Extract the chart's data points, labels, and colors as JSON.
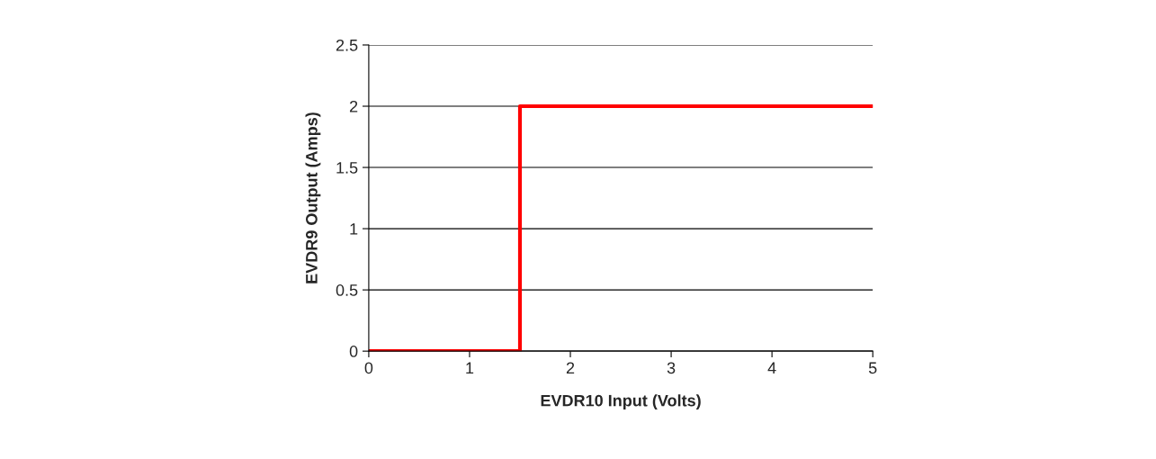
{
  "chart_data": {
    "type": "line",
    "xlabel": "EVDR10 Input (Volts)",
    "ylabel": "EVDR9 Output (Amps)",
    "series": [
      {
        "color": "#ff0000",
        "x": [
          0,
          1.5,
          1.5,
          5
        ],
        "values": [
          0,
          0,
          2,
          2
        ]
      }
    ],
    "xlim": [
      0,
      5
    ],
    "xticks": [
      0,
      1,
      2,
      3,
      4,
      5
    ],
    "ylim": [
      0,
      2.5
    ],
    "yticks": [
      0,
      0.5,
      1,
      1.5,
      2,
      2.5
    ],
    "grid": "y",
    "legend": false,
    "marker": "none",
    "line_style": "solid"
  }
}
